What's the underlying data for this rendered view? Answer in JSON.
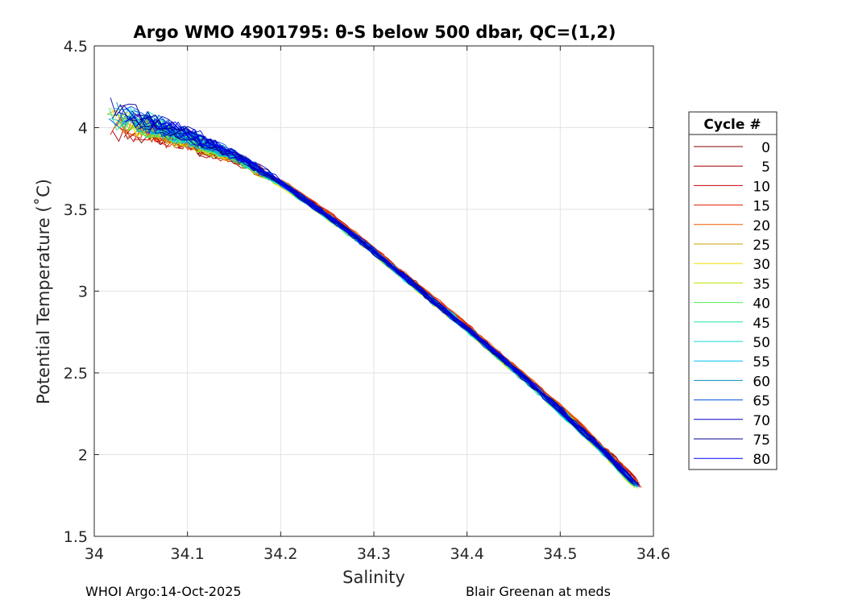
{
  "chart_data": {
    "type": "line",
    "title": "Argo WMO 4901795: θ-S below 500 dbar,  QC=(1,2)",
    "xlabel": "Salinity",
    "ylabel": "Potential Temperature (˚C)",
    "xlim": [
      34.0,
      34.6
    ],
    "ylim": [
      1.5,
      4.5
    ],
    "xticks": [
      34.0,
      34.1,
      34.2,
      34.3,
      34.4,
      34.5,
      34.6
    ],
    "xtick_labels": [
      "34",
      "34.1",
      "34.2",
      "34.3",
      "34.4",
      "34.5",
      "34.6"
    ],
    "yticks": [
      1.5,
      2.0,
      2.5,
      3.0,
      3.5,
      4.0,
      4.5
    ],
    "ytick_labels": [
      "1.5",
      "2",
      "2.5",
      "3",
      "3.5",
      "4",
      "4.5"
    ],
    "grid": true,
    "legend": {
      "title": "Cycle #",
      "placement": "outside-right",
      "entries": [
        {
          "label": "0",
          "color": "#800000"
        },
        {
          "label": "5",
          "color": "#a00000"
        },
        {
          "label": "10",
          "color": "#c80000"
        },
        {
          "label": "15",
          "color": "#e01800"
        },
        {
          "label": "20",
          "color": "#f05a00"
        },
        {
          "label": "25",
          "color": "#c8a000"
        },
        {
          "label": "30",
          "color": "#f0e000"
        },
        {
          "label": "35",
          "color": "#b4e600"
        },
        {
          "label": "40",
          "color": "#50f050"
        },
        {
          "label": "45",
          "color": "#20e8a0"
        },
        {
          "label": "50",
          "color": "#10d8d0"
        },
        {
          "label": "55",
          "color": "#00c0ff"
        },
        {
          "label": "60",
          "color": "#0090c0"
        },
        {
          "label": "65",
          "color": "#0050e0"
        },
        {
          "label": "70",
          "color": "#0000c0"
        },
        {
          "label": "75",
          "color": "#000090"
        },
        {
          "label": "80",
          "color": "#0000ff"
        }
      ]
    },
    "mean_profile": {
      "salinity": [
        34.0,
        34.05,
        34.1,
        34.15,
        34.2,
        34.25,
        34.3,
        34.35,
        34.4,
        34.45,
        34.5,
        34.55,
        34.583
      ],
      "theta": [
        4.08,
        4.02,
        3.93,
        3.82,
        3.66,
        3.46,
        3.24,
        3.0,
        2.77,
        2.52,
        2.27,
        2.0,
        1.8
      ]
    }
  },
  "footer": {
    "left": "WHOI Argo:14-Oct-2025",
    "right": "Blair Greenan at meds"
  }
}
